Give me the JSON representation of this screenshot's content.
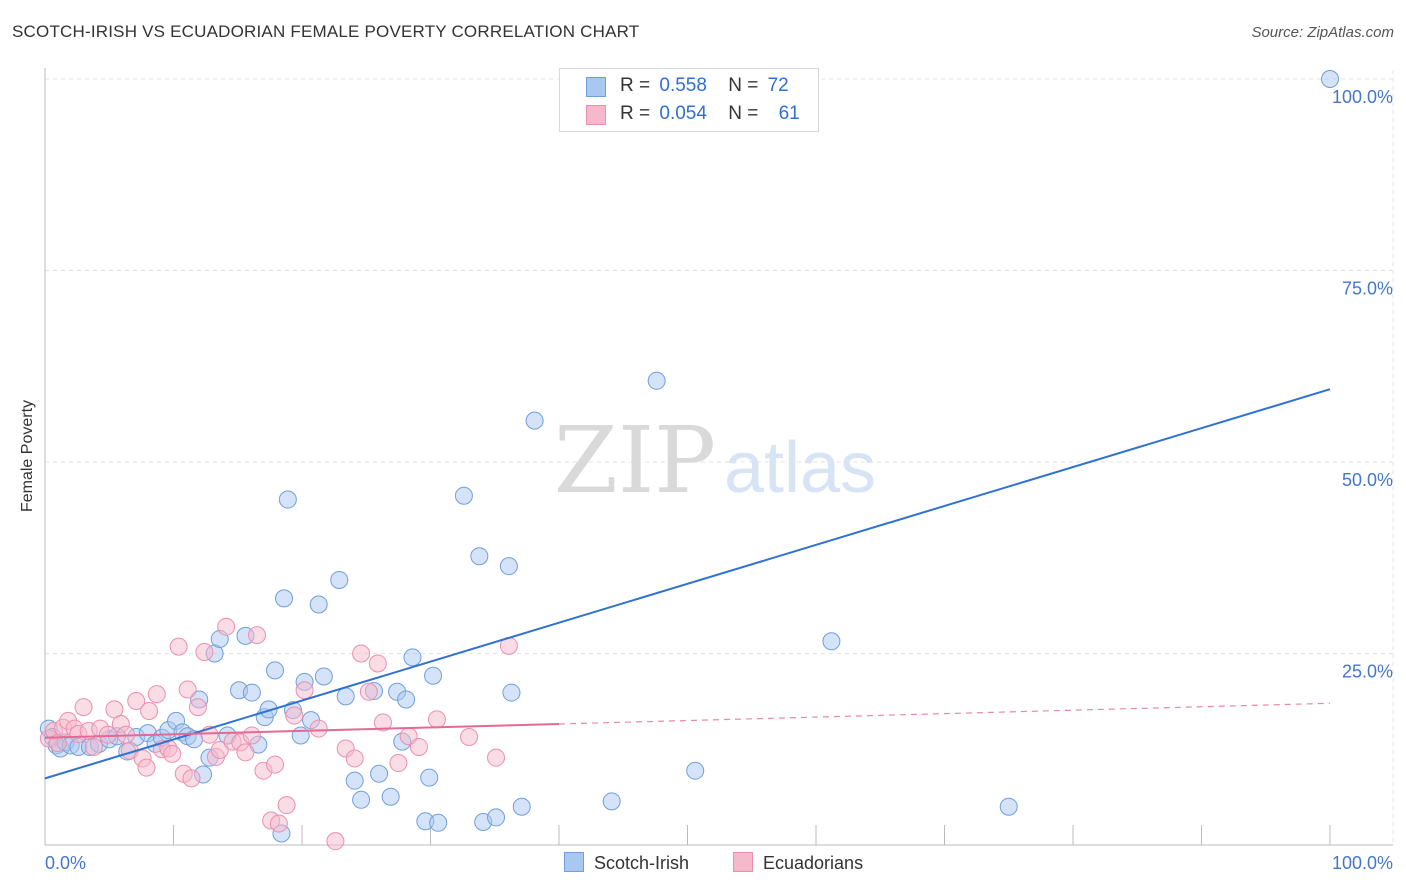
{
  "title": "SCOTCH-IRISH VS ECUADORIAN FEMALE POVERTY CORRELATION CHART",
  "source": "Source: ZipAtlas.com",
  "watermark": {
    "zip": "ZIP",
    "atlas": "atlas"
  },
  "colors": {
    "blue_fill": "#a9c8f0",
    "blue_stroke": "#6f9fdc",
    "blue_line": "#2f72d2",
    "pink_fill": "#f6b9cc",
    "pink_stroke": "#ec8fae",
    "pink_line": "#e26a95",
    "grid": "#e3e3e3",
    "axis_label": "#4477cc"
  },
  "legend": {
    "r_label": "R =",
    "n_label": "N =",
    "rows": [
      {
        "series": "Scotch-Irish",
        "r": "0.558",
        "n": "72"
      },
      {
        "series": "Ecuadorians",
        "r": "0.054",
        "n": "61"
      }
    ]
  },
  "chart_data": {
    "type": "scatter",
    "title": "SCOTCH-IRISH VS ECUADORIAN FEMALE POVERTY CORRELATION CHART",
    "xlabel": "",
    "ylabel": "Female Poverty",
    "xlim": [
      0,
      100
    ],
    "ylim": [
      0,
      100
    ],
    "x_tick_labels": [
      {
        "value": 0,
        "label": "0.0%"
      },
      {
        "value": 100,
        "label": "100.0%"
      }
    ],
    "y_tick_labels": [
      {
        "value": 25,
        "label": "25.0%"
      },
      {
        "value": 50,
        "label": "50.0%"
      },
      {
        "value": 75,
        "label": "75.0%"
      },
      {
        "value": 100,
        "label": "100.0%"
      }
    ],
    "x_minor_ticks": [
      0,
      10,
      20,
      30,
      40,
      50,
      60,
      70,
      80,
      90,
      100
    ],
    "grid": true,
    "series": [
      {
        "name": "Scotch-Irish",
        "color": "blue",
        "trend": {
          "x": [
            0,
            100
          ],
          "y": [
            8.7,
            59.5
          ],
          "dashed_after": null
        },
        "points": [
          [
            0.3,
            15.2
          ],
          [
            0.6,
            14.1
          ],
          [
            0.9,
            13.0
          ],
          [
            1.2,
            12.6
          ],
          [
            1.6,
            13.4
          ],
          [
            2.0,
            13.0
          ],
          [
            2.6,
            12.8
          ],
          [
            3.5,
            12.8
          ],
          [
            4.2,
            13.2
          ],
          [
            5.0,
            13.8
          ],
          [
            5.6,
            14.2
          ],
          [
            6.4,
            12.2
          ],
          [
            7.1,
            14.1
          ],
          [
            8.0,
            14.6
          ],
          [
            8.6,
            13.2
          ],
          [
            9.1,
            14.0
          ],
          [
            9.6,
            15.0
          ],
          [
            10.2,
            16.2
          ],
          [
            10.7,
            14.7
          ],
          [
            11.1,
            14.2
          ],
          [
            11.6,
            13.8
          ],
          [
            12.0,
            19.0
          ],
          [
            12.3,
            9.2
          ],
          [
            12.8,
            11.4
          ],
          [
            13.2,
            25.0
          ],
          [
            13.6,
            26.9
          ],
          [
            14.2,
            14.3
          ],
          [
            15.1,
            20.2
          ],
          [
            15.6,
            27.3
          ],
          [
            16.1,
            19.9
          ],
          [
            16.6,
            13.1
          ],
          [
            17.1,
            16.7
          ],
          [
            17.4,
            17.7
          ],
          [
            17.9,
            22.8
          ],
          [
            18.4,
            1.5
          ],
          [
            18.6,
            32.2
          ],
          [
            18.9,
            45.1
          ],
          [
            19.3,
            17.6
          ],
          [
            19.9,
            14.3
          ],
          [
            20.2,
            21.3
          ],
          [
            20.7,
            16.3
          ],
          [
            21.3,
            31.4
          ],
          [
            21.7,
            22.0
          ],
          [
            22.9,
            34.6
          ],
          [
            23.4,
            19.4
          ],
          [
            24.1,
            8.4
          ],
          [
            24.6,
            5.9
          ],
          [
            25.6,
            20.1
          ],
          [
            26.0,
            9.3
          ],
          [
            26.9,
            6.3
          ],
          [
            27.4,
            20.0
          ],
          [
            27.8,
            13.5
          ],
          [
            28.1,
            19.0
          ],
          [
            28.6,
            24.5
          ],
          [
            29.6,
            3.1
          ],
          [
            29.9,
            8.8
          ],
          [
            30.2,
            22.1
          ],
          [
            30.6,
            2.9
          ],
          [
            32.6,
            45.6
          ],
          [
            33.8,
            37.7
          ],
          [
            34.1,
            3.0
          ],
          [
            35.1,
            3.6
          ],
          [
            36.1,
            36.4
          ],
          [
            36.3,
            19.9
          ],
          [
            37.1,
            5.0
          ],
          [
            38.1,
            55.4
          ],
          [
            44.1,
            5.7
          ],
          [
            47.6,
            60.6
          ],
          [
            50.6,
            9.7
          ],
          [
            61.2,
            26.6
          ],
          [
            75.0,
            5.0
          ],
          [
            100.0,
            100.0
          ]
        ]
      },
      {
        "name": "Ecuadorians",
        "color": "pink",
        "trend": {
          "x": [
            0,
            100
          ],
          "y": [
            14.0,
            18.5
          ],
          "solid_until": 40
        },
        "points": [
          [
            0.3,
            13.9
          ],
          [
            0.7,
            14.9
          ],
          [
            1.0,
            13.3
          ],
          [
            1.4,
            15.3
          ],
          [
            1.8,
            16.2
          ],
          [
            2.3,
            15.2
          ],
          [
            2.6,
            14.5
          ],
          [
            3.0,
            18.0
          ],
          [
            3.4,
            14.9
          ],
          [
            3.8,
            12.8
          ],
          [
            4.3,
            15.2
          ],
          [
            4.9,
            14.4
          ],
          [
            5.4,
            17.7
          ],
          [
            5.9,
            15.8
          ],
          [
            6.3,
            14.4
          ],
          [
            6.6,
            12.3
          ],
          [
            7.1,
            18.8
          ],
          [
            7.6,
            11.3
          ],
          [
            7.9,
            10.1
          ],
          [
            8.1,
            17.5
          ],
          [
            8.7,
            19.7
          ],
          [
            9.1,
            12.5
          ],
          [
            9.6,
            12.6
          ],
          [
            9.9,
            11.9
          ],
          [
            10.4,
            25.9
          ],
          [
            10.8,
            9.3
          ],
          [
            11.1,
            20.3
          ],
          [
            11.4,
            8.7
          ],
          [
            11.9,
            18.0
          ],
          [
            12.4,
            25.2
          ],
          [
            12.8,
            14.4
          ],
          [
            13.3,
            11.5
          ],
          [
            13.6,
            12.4
          ],
          [
            14.1,
            28.5
          ],
          [
            14.6,
            13.5
          ],
          [
            15.2,
            13.4
          ],
          [
            15.6,
            12.1
          ],
          [
            16.1,
            14.3
          ],
          [
            16.5,
            27.4
          ],
          [
            17.0,
            9.7
          ],
          [
            17.6,
            3.2
          ],
          [
            17.9,
            10.5
          ],
          [
            18.2,
            2.8
          ],
          [
            18.8,
            5.2
          ],
          [
            19.4,
            16.9
          ],
          [
            20.2,
            20.2
          ],
          [
            21.3,
            15.2
          ],
          [
            22.6,
            0.5
          ],
          [
            23.4,
            12.6
          ],
          [
            24.1,
            11.3
          ],
          [
            24.6,
            25.0
          ],
          [
            25.2,
            20.0
          ],
          [
            25.9,
            23.7
          ],
          [
            26.3,
            16.0
          ],
          [
            27.5,
            10.7
          ],
          [
            28.3,
            14.2
          ],
          [
            29.1,
            12.8
          ],
          [
            30.5,
            16.4
          ],
          [
            33.0,
            14.1
          ],
          [
            35.1,
            11.4
          ],
          [
            36.1,
            26.0
          ]
        ]
      }
    ]
  }
}
